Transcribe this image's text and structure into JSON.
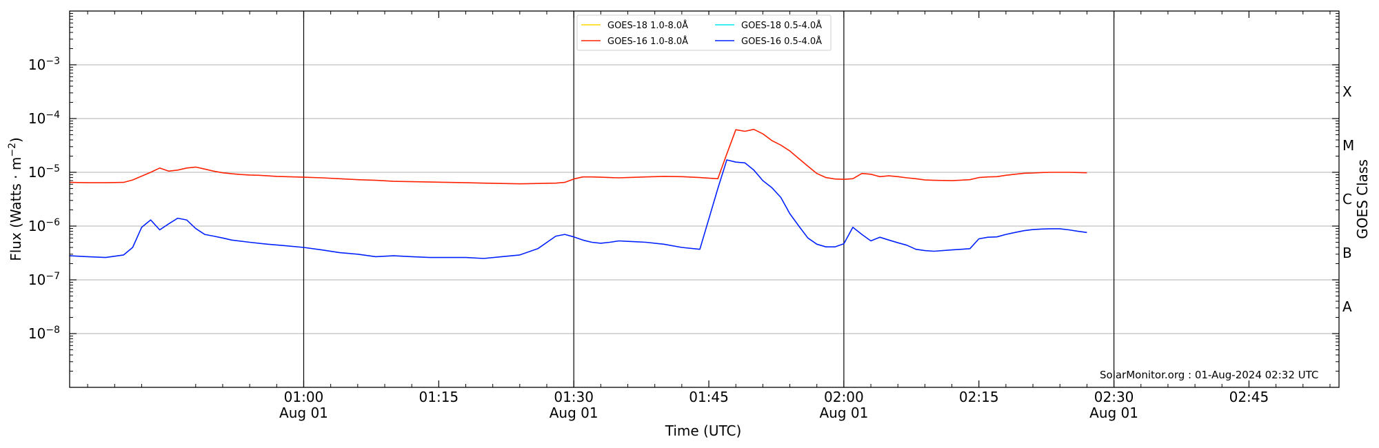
{
  "chart_data": {
    "type": "line",
    "xlabel": "Time (UTC)",
    "ylabel": "Flux (Watts · m⁻²)",
    "ylabel_right": "GOES Class",
    "y_scale": "log",
    "ylim": [
      1e-09,
      0.01
    ],
    "xlim": [
      "00:34",
      "02:55"
    ],
    "grid": "horizontal",
    "legend_position": "top-center",
    "watermark": "SolarMonitor.org : 01-Aug-2024 02:32 UTC",
    "y_ticks": [
      {
        "value": 1e-08,
        "base": "10",
        "exp": "−8"
      },
      {
        "value": 1e-07,
        "base": "10",
        "exp": "−7"
      },
      {
        "value": 1e-06,
        "base": "10",
        "exp": "−6"
      },
      {
        "value": 1e-05,
        "base": "10",
        "exp": "−5"
      },
      {
        "value": 0.0001,
        "base": "10",
        "exp": "−4"
      },
      {
        "value": 0.001,
        "base": "10",
        "exp": "−3"
      }
    ],
    "goes_classes": [
      {
        "label": "A",
        "value": 3.16e-08
      },
      {
        "label": "B",
        "value": 3.16e-07
      },
      {
        "label": "C",
        "value": 3.16e-06
      },
      {
        "label": "M",
        "value": 3.16e-05
      },
      {
        "label": "X",
        "value": 0.000316
      }
    ],
    "x_ticks": [
      {
        "time": "01:00",
        "line1": "01:00",
        "line2": "Aug 01",
        "day_marker": true
      },
      {
        "time": "01:15",
        "line1": "01:15",
        "line2": "",
        "day_marker": false
      },
      {
        "time": "01:30",
        "line1": "01:30",
        "line2": "Aug 01",
        "day_marker": true
      },
      {
        "time": "01:45",
        "line1": "01:45",
        "line2": "",
        "day_marker": false
      },
      {
        "time": "02:00",
        "line1": "02:00",
        "line2": "Aug 01",
        "day_marker": true
      },
      {
        "time": "02:15",
        "line1": "02:15",
        "line2": "",
        "day_marker": false
      },
      {
        "time": "02:30",
        "line1": "02:30",
        "line2": "Aug 01",
        "day_marker": true
      },
      {
        "time": "02:45",
        "line1": "02:45",
        "line2": "",
        "day_marker": false
      }
    ],
    "series": [
      {
        "name": "GOES-18 1.0-8.0Å",
        "color": "#ffd700",
        "x": [],
        "y": []
      },
      {
        "name": "GOES-18 0.5-4.0Å",
        "color": "#00e5ee",
        "x": [],
        "y": []
      },
      {
        "name": "GOES-16 1.0-8.0Å",
        "color": "#ff2000",
        "x": [
          "00:34",
          "00:36",
          "00:38",
          "00:40",
          "00:41",
          "00:43",
          "00:44",
          "00:45",
          "00:46",
          "00:47",
          "00:48",
          "00:49",
          "00:50",
          "00:51",
          "00:52",
          "00:53",
          "00:54",
          "00:55",
          "00:56",
          "00:57",
          "00:58",
          "00:59",
          "01:00",
          "01:02",
          "01:04",
          "01:06",
          "01:08",
          "01:10",
          "01:12",
          "01:14",
          "01:16",
          "01:18",
          "01:20",
          "01:22",
          "01:24",
          "01:26",
          "01:28",
          "01:29",
          "01:30",
          "01:31",
          "01:32",
          "01:33",
          "01:34",
          "01:35",
          "01:36",
          "01:38",
          "01:40",
          "01:42",
          "01:44",
          "01:46",
          "01:47",
          "01:48",
          "01:49",
          "01:50",
          "01:51",
          "01:52",
          "01:53",
          "01:54",
          "01:55",
          "01:56",
          "01:57",
          "01:58",
          "01:59",
          "02:00",
          "02:01",
          "02:02",
          "02:03",
          "02:04",
          "02:05",
          "02:06",
          "02:07",
          "02:08",
          "02:09",
          "02:10",
          "02:12",
          "02:14",
          "02:15",
          "02:16",
          "02:17",
          "02:18",
          "02:19",
          "02:20",
          "02:21",
          "02:22",
          "02:23",
          "02:24",
          "02:25",
          "02:26",
          "02:27"
        ],
        "y": [
          6.5e-06,
          6.4e-06,
          6.4e-06,
          6.5e-06,
          7.2e-06,
          1e-05,
          1.2e-05,
          1.05e-05,
          1.1e-05,
          1.2e-05,
          1.25e-05,
          1.15e-05,
          1.05e-05,
          9.8e-06,
          9.4e-06,
          9.1e-06,
          8.9e-06,
          8.8e-06,
          8.6e-06,
          8.4e-06,
          8.3e-06,
          8.2e-06,
          8.1e-06,
          7.9e-06,
          7.6e-06,
          7.3e-06,
          7.1e-06,
          6.8e-06,
          6.7e-06,
          6.6e-06,
          6.5e-06,
          6.4e-06,
          6.3e-06,
          6.2e-06,
          6.1e-06,
          6.2e-06,
          6.3e-06,
          6.5e-06,
          7.5e-06,
          8.2e-06,
          8.2e-06,
          8.1e-06,
          8e-06,
          7.9e-06,
          8e-06,
          8.2e-06,
          8.4e-06,
          8.3e-06,
          8e-06,
          7.6e-06,
          2.2e-05,
          6.2e-05,
          5.8e-05,
          6.3e-05,
          5.2e-05,
          3.9e-05,
          3.2e-05,
          2.5e-05,
          1.8e-05,
          1.3e-05,
          9.5e-06,
          8e-06,
          7.5e-06,
          7.4e-06,
          7.6e-06,
          9.5e-06,
          9.2e-06,
          8.3e-06,
          8.6e-06,
          8.3e-06,
          7.9e-06,
          7.6e-06,
          7.2e-06,
          7.1e-06,
          7e-06,
          7.3e-06,
          8e-06,
          8.2e-06,
          8.3e-06,
          8.8e-06,
          9.2e-06,
          9.6e-06,
          9.7e-06,
          9.9e-06,
          1e-05,
          1e-05,
          1e-05,
          9.9e-06,
          9.8e-06
        ]
      },
      {
        "name": "GOES-16 0.5-4.0Å",
        "color": "#0020ff",
        "x": [
          "00:34",
          "00:36",
          "00:38",
          "00:40",
          "00:41",
          "00:42",
          "00:43",
          "00:44",
          "00:45",
          "00:46",
          "00:47",
          "00:48",
          "00:49",
          "00:50",
          "00:51",
          "00:52",
          "00:54",
          "00:56",
          "00:58",
          "01:00",
          "01:02",
          "01:04",
          "01:06",
          "01:08",
          "01:10",
          "01:12",
          "01:14",
          "01:16",
          "01:18",
          "01:20",
          "01:22",
          "01:24",
          "01:26",
          "01:28",
          "01:29",
          "01:30",
          "01:31",
          "01:32",
          "01:33",
          "01:34",
          "01:35",
          "01:36",
          "01:37",
          "01:38",
          "01:40",
          "01:42",
          "01:44",
          "01:46",
          "01:47",
          "01:48",
          "01:49",
          "01:50",
          "01:51",
          "01:52",
          "01:53",
          "01:54",
          "01:55",
          "01:56",
          "01:57",
          "01:58",
          "01:59",
          "02:00",
          "02:01",
          "02:02",
          "02:03",
          "02:04",
          "02:05",
          "02:06",
          "02:07",
          "02:08",
          "02:09",
          "02:10",
          "02:12",
          "02:14",
          "02:15",
          "02:16",
          "02:17",
          "02:18",
          "02:19",
          "02:20",
          "02:21",
          "02:22",
          "02:23",
          "02:24",
          "02:25",
          "02:26",
          "02:27"
        ],
        "y": [
          2.8e-07,
          2.7e-07,
          2.6e-07,
          2.9e-07,
          4e-07,
          9.5e-07,
          1.3e-06,
          8.5e-07,
          1.1e-06,
          1.4e-06,
          1.3e-06,
          9e-07,
          7e-07,
          6.5e-07,
          6e-07,
          5.5e-07,
          5e-07,
          4.6e-07,
          4.3e-07,
          4e-07,
          3.6e-07,
          3.2e-07,
          3e-07,
          2.7e-07,
          2.8e-07,
          2.7e-07,
          2.6e-07,
          2.6e-07,
          2.6e-07,
          2.5e-07,
          2.7e-07,
          2.9e-07,
          3.8e-07,
          6.5e-07,
          7e-07,
          6.3e-07,
          5.5e-07,
          5e-07,
          4.8e-07,
          5e-07,
          5.3e-07,
          5.2e-07,
          5.1e-07,
          5e-07,
          4.6e-07,
          4e-07,
          3.7e-07,
          5e-06,
          1.7e-05,
          1.55e-05,
          1.5e-05,
          1.1e-05,
          7e-06,
          5.2e-06,
          3.4e-06,
          1.7e-06,
          1e-06,
          6e-07,
          4.6e-07,
          4.1e-07,
          4.1e-07,
          4.7e-07,
          9.5e-07,
          7e-07,
          5.3e-07,
          6.2e-07,
          5.5e-07,
          4.9e-07,
          4.4e-07,
          3.7e-07,
          3.5e-07,
          3.4e-07,
          3.6e-07,
          3.8e-07,
          5.8e-07,
          6.2e-07,
          6.3e-07,
          7e-07,
          7.6e-07,
          8.2e-07,
          8.6e-07,
          8.8e-07,
          8.9e-07,
          8.9e-07,
          8.5e-07,
          8e-07,
          7.6e-07
        ]
      }
    ]
  }
}
